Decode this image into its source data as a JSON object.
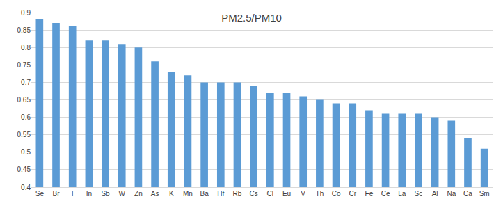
{
  "chart_data": {
    "type": "bar",
    "title": "PM2.5/PM10",
    "categories": [
      "Se",
      "Br",
      "I",
      "In",
      "Sb",
      "W",
      "Zn",
      "As",
      "K",
      "Mn",
      "Ba",
      "Hf",
      "Rb",
      "Cs",
      "Cl",
      "Eu",
      "V",
      "Th",
      "Co",
      "Cr",
      "Fe",
      "Ce",
      "La",
      "Sc",
      "Al",
      "Na",
      "Ca",
      "Sm"
    ],
    "values": [
      0.88,
      0.87,
      0.86,
      0.82,
      0.82,
      0.81,
      0.8,
      0.76,
      0.73,
      0.72,
      0.7,
      0.7,
      0.7,
      0.69,
      0.67,
      0.67,
      0.66,
      0.65,
      0.64,
      0.64,
      0.62,
      0.61,
      0.61,
      0.61,
      0.6,
      0.59,
      0.54,
      0.51
    ],
    "color": "#5b9bd5",
    "ylim": [
      0.4,
      0.9
    ],
    "yticks": [
      0.4,
      0.45,
      0.5,
      0.55,
      0.6,
      0.65,
      0.7,
      0.75,
      0.8,
      0.85,
      0.9
    ],
    "grid": true
  }
}
